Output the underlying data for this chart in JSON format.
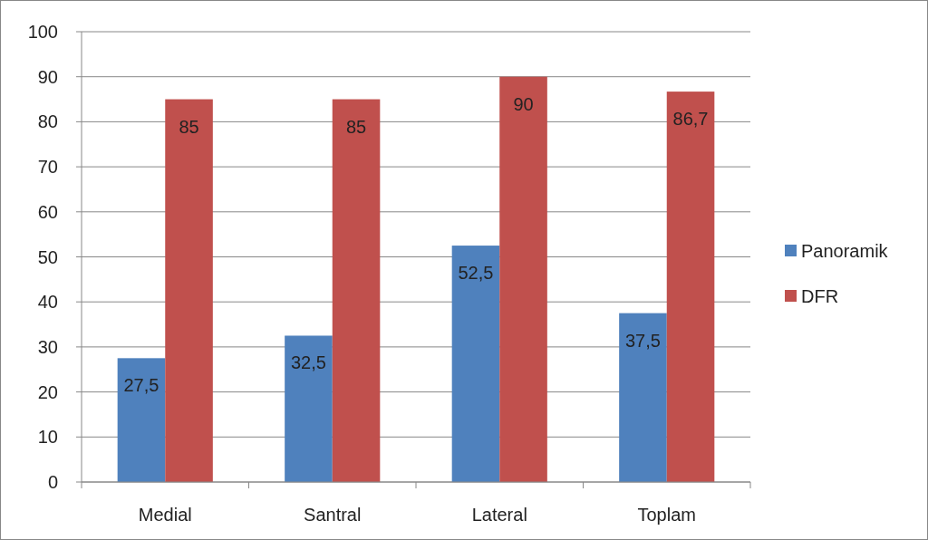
{
  "chart_data": {
    "type": "bar",
    "categories": [
      "Medial",
      "Santral",
      "Lateral",
      "Toplam"
    ],
    "series": [
      {
        "name": "Panoramik",
        "color": "#4f81bd",
        "values": [
          27.5,
          32.5,
          52.5,
          37.5
        ],
        "value_labels": [
          "27,5",
          "32,5",
          "52,5",
          "37,5"
        ]
      },
      {
        "name": "DFR",
        "color": "#c0504d",
        "values": [
          85,
          85,
          90,
          86.7
        ],
        "value_labels": [
          "85",
          "85",
          "90",
          "86,7"
        ]
      }
    ],
    "ylim": [
      0,
      100
    ],
    "yticks": [
      0,
      10,
      20,
      30,
      40,
      50,
      60,
      70,
      80,
      90,
      100
    ],
    "grid": "y",
    "legend": "right"
  }
}
